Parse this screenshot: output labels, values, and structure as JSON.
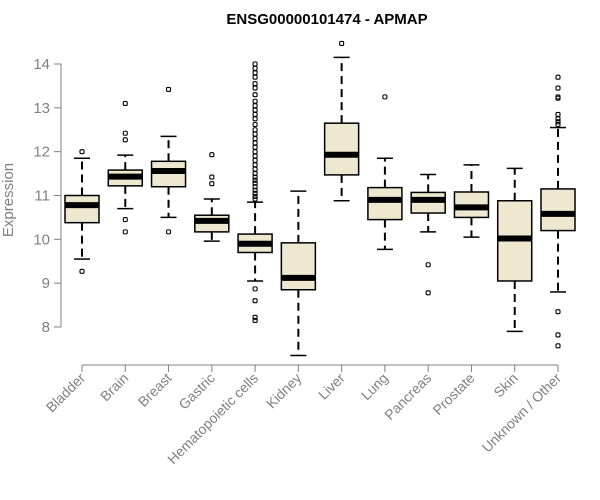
{
  "chart_data": {
    "type": "box",
    "title": "ENSG00000101474 - APMAP",
    "ylabel": "Expression",
    "xlabel": "",
    "ylim": [
      7.6,
      14.4
    ],
    "yticks": [
      8,
      9,
      10,
      11,
      12,
      13,
      14
    ],
    "grid": false,
    "box_fill": "#efe8d0",
    "categories": [
      "Bladder",
      "Brain",
      "Breast",
      "Gastric",
      "Hematopoietic cells",
      "Kidney",
      "Liver",
      "Lung",
      "Pancreas",
      "Prostate",
      "Skin",
      "Unknown / Other"
    ],
    "boxes": [
      {
        "min": 9.55,
        "q1": 10.38,
        "median": 10.78,
        "q3": 11.0,
        "max": 11.85,
        "outliers": [
          12.0,
          9.27
        ]
      },
      {
        "min": 10.7,
        "q1": 11.22,
        "median": 11.43,
        "q3": 11.58,
        "max": 11.92,
        "outliers": [
          13.1,
          12.42,
          12.27,
          10.45,
          10.17
        ]
      },
      {
        "min": 10.5,
        "q1": 11.2,
        "median": 11.56,
        "q3": 11.78,
        "max": 12.35,
        "outliers": [
          13.42,
          10.17
        ]
      },
      {
        "min": 9.96,
        "q1": 10.17,
        "median": 10.42,
        "q3": 10.55,
        "max": 10.92,
        "outliers": [
          11.93,
          11.42,
          11.27
        ]
      },
      {
        "min": 9.05,
        "q1": 9.7,
        "median": 9.9,
        "q3": 10.12,
        "max": 10.85,
        "outliers": [
          14.0,
          13.9,
          13.8,
          13.7,
          13.55,
          13.45,
          13.3,
          13.15,
          13.05,
          12.95,
          12.85,
          12.75,
          12.62,
          12.5,
          12.4,
          12.3,
          12.2,
          12.1,
          12.0,
          11.9,
          11.8,
          11.7,
          11.6,
          11.5,
          11.42,
          11.35,
          11.28,
          11.2,
          11.12,
          11.05,
          10.98,
          10.92,
          8.87,
          8.6,
          8.22,
          8.15
        ]
      },
      {
        "min": 7.35,
        "q1": 8.85,
        "median": 9.12,
        "q3": 9.92,
        "max": 11.1,
        "outliers": []
      },
      {
        "min": 10.88,
        "q1": 11.47,
        "median": 11.93,
        "q3": 12.65,
        "max": 14.15,
        "outliers": [
          14.47
        ]
      },
      {
        "min": 9.77,
        "q1": 10.45,
        "median": 10.9,
        "q3": 11.18,
        "max": 11.85,
        "outliers": [
          13.25
        ]
      },
      {
        "min": 10.17,
        "q1": 10.6,
        "median": 10.9,
        "q3": 11.07,
        "max": 11.48,
        "outliers": [
          9.42,
          8.78
        ]
      },
      {
        "min": 10.05,
        "q1": 10.5,
        "median": 10.73,
        "q3": 11.08,
        "max": 11.7,
        "outliers": []
      },
      {
        "min": 7.9,
        "q1": 9.05,
        "median": 10.02,
        "q3": 10.88,
        "max": 11.62,
        "outliers": []
      },
      {
        "min": 8.8,
        "q1": 10.2,
        "median": 10.58,
        "q3": 11.15,
        "max": 12.55,
        "outliers": [
          13.7,
          13.45,
          13.25,
          13.22,
          12.85,
          12.75,
          12.68,
          12.62,
          8.35,
          7.82,
          7.57
        ]
      }
    ]
  }
}
